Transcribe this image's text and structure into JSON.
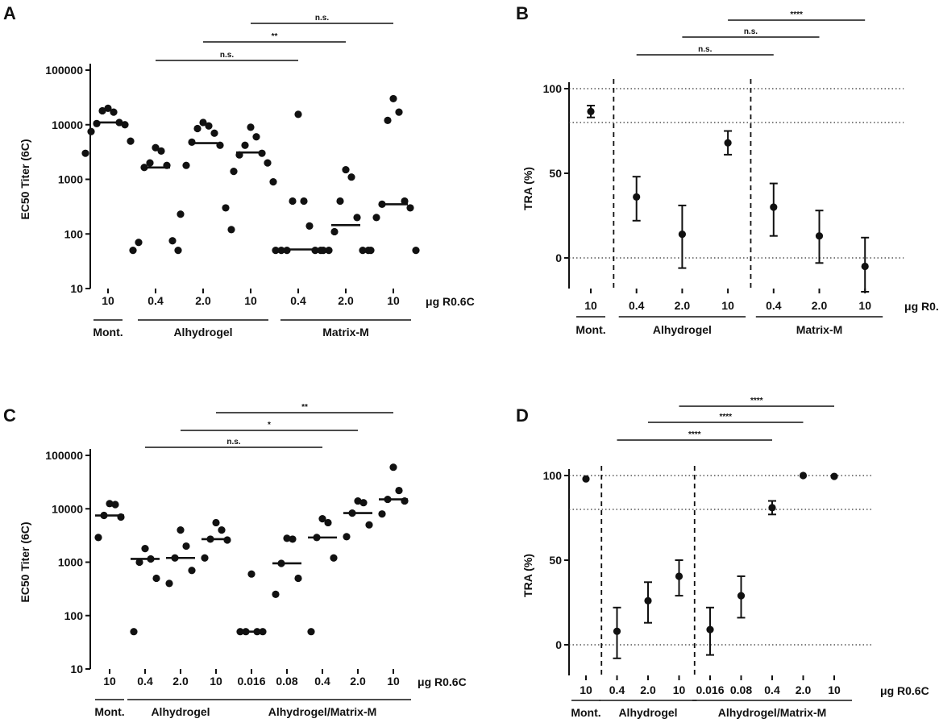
{
  "unit_label": "μg R0.6C",
  "chart_data": [
    {
      "panel": "A",
      "type": "scatter",
      "yscale": "log",
      "ylabel": "EC50 Titer (6C)",
      "ylim": [
        10,
        100000
      ],
      "yticks": [
        10,
        100,
        1000,
        10000,
        100000
      ],
      "categories": [
        "10",
        "0.4",
        "2.0",
        "10",
        "0.4",
        "2.0",
        "10"
      ],
      "groups": [
        {
          "name": "Mont.",
          "span": [
            0,
            0
          ]
        },
        {
          "name": "Alhydrogel",
          "span": [
            1,
            3
          ]
        },
        {
          "name": "Matrix-M",
          "span": [
            4,
            6
          ]
        }
      ],
      "medians": [
        11000,
        1650,
        4600,
        3100,
        52,
        145,
        350
      ],
      "points": [
        [
          20000,
          17000,
          18000,
          11000,
          10500,
          10000,
          7500,
          5000,
          3000
        ],
        [
          3800,
          3300,
          2000,
          1800,
          1650,
          75,
          70,
          50,
          50
        ],
        [
          11000,
          9500,
          8500,
          7000,
          4800,
          4200,
          1800,
          300,
          230,
          120
        ],
        [
          9000,
          6000,
          4200,
          3000,
          2800,
          2000,
          1400,
          900
        ],
        [
          15500,
          400,
          400,
          140,
          50,
          50,
          50,
          50,
          50
        ],
        [
          1500,
          1100,
          400,
          200,
          110,
          50,
          50,
          50,
          50
        ],
        [
          30000,
          17000,
          12000,
          400,
          350,
          300,
          200,
          50,
          50
        ]
      ],
      "significance": [
        {
          "from": 1,
          "to": 4,
          "label": "n.s."
        },
        {
          "from": 2,
          "to": 5,
          "label": "**"
        },
        {
          "from": 3,
          "to": 6,
          "label": "n.s."
        }
      ]
    },
    {
      "panel": "B",
      "type": "scatter",
      "yscale": "linear",
      "ylabel": "TRA (%)",
      "ylim": [
        -20,
        105
      ],
      "yticks": [
        0,
        50,
        100
      ],
      "reflines": [
        0,
        80,
        100
      ],
      "dividers": [
        0.5,
        3.5
      ],
      "categories": [
        "10",
        "0.4",
        "2.0",
        "10",
        "0.4",
        "2.0",
        "10"
      ],
      "groups": [
        {
          "name": "Mont.",
          "span": [
            0,
            0
          ]
        },
        {
          "name": "Alhydrogel",
          "span": [
            1,
            3
          ]
        },
        {
          "name": "Matrix-M",
          "span": [
            4,
            6
          ]
        }
      ],
      "means": [
        86.5,
        36,
        14,
        68,
        30,
        13,
        -5
      ],
      "lower": [
        83,
        22,
        -6,
        61,
        13,
        -3,
        -20
      ],
      "upper": [
        90,
        48,
        31,
        75,
        44,
        28,
        12
      ],
      "significance": [
        {
          "from": 1,
          "to": 4,
          "label": "n.s."
        },
        {
          "from": 2,
          "to": 5,
          "label": "n.s."
        },
        {
          "from": 3,
          "to": 6,
          "label": "****"
        }
      ]
    },
    {
      "panel": "C",
      "type": "scatter",
      "yscale": "log",
      "ylabel": "EC50 Titer (6C)",
      "ylim": [
        10,
        100000
      ],
      "yticks": [
        10,
        100,
        1000,
        10000,
        100000
      ],
      "categories": [
        "10",
        "0.4",
        "2.0",
        "10",
        "0.016",
        "0.08",
        "0.4",
        "2.0",
        "10"
      ],
      "groups": [
        {
          "name": "Mont.",
          "span": [
            0,
            0
          ]
        },
        {
          "name": "Alhydrogel",
          "span": [
            1,
            3
          ]
        },
        {
          "name": "Alhydrogel/Matrix-M",
          "span": [
            4,
            8
          ]
        }
      ],
      "medians": [
        7500,
        1150,
        1200,
        2700,
        50,
        950,
        2900,
        8300,
        15000
      ],
      "points": [
        [
          12500,
          12000,
          7500,
          7000,
          2900
        ],
        [
          1800,
          1150,
          1000,
          500,
          50
        ],
        [
          4000,
          2000,
          1200,
          700,
          400
        ],
        [
          5500,
          4000,
          2700,
          2600,
          1200
        ],
        [
          600,
          50,
          50,
          50,
          50
        ],
        [
          2800,
          2700,
          950,
          500,
          250
        ],
        [
          6500,
          5500,
          2900,
          1200,
          50
        ],
        [
          14000,
          13000,
          8300,
          5000,
          3000
        ],
        [
          60000,
          22000,
          15000,
          14000,
          8000
        ]
      ],
      "significance": [
        {
          "from": 1,
          "to": 6,
          "label": "n.s."
        },
        {
          "from": 2,
          "to": 7,
          "label": "*"
        },
        {
          "from": 3,
          "to": 8,
          "label": "**"
        }
      ]
    },
    {
      "panel": "D",
      "type": "scatter",
      "yscale": "linear",
      "ylabel": "TRA (%)",
      "ylim": [
        -20,
        105
      ],
      "yticks": [
        0,
        50,
        100
      ],
      "reflines": [
        0,
        80,
        100
      ],
      "dividers": [
        0.5,
        3.5
      ],
      "categories": [
        "10",
        "0.4",
        "2.0",
        "10",
        "0.016",
        "0.08",
        "0.4",
        "2.0",
        "10"
      ],
      "groups": [
        {
          "name": "Mont.",
          "span": [
            0,
            0
          ]
        },
        {
          "name": "Alhydrogel",
          "span": [
            1,
            3
          ]
        },
        {
          "name": "Alhydrogel/Matrix-M",
          "span": [
            4,
            8
          ]
        }
      ],
      "means": [
        98,
        8,
        26,
        40.5,
        9,
        29,
        81,
        100,
        99.5
      ],
      "lower": [
        null,
        -8,
        13,
        29,
        -6,
        16,
        77,
        null,
        null
      ],
      "upper": [
        null,
        22,
        37,
        50,
        22,
        40.5,
        85,
        null,
        null
      ],
      "significance": [
        {
          "from": 1,
          "to": 6,
          "label": "****"
        },
        {
          "from": 2,
          "to": 7,
          "label": "****"
        },
        {
          "from": 3,
          "to": 8,
          "label": "****"
        }
      ]
    }
  ]
}
